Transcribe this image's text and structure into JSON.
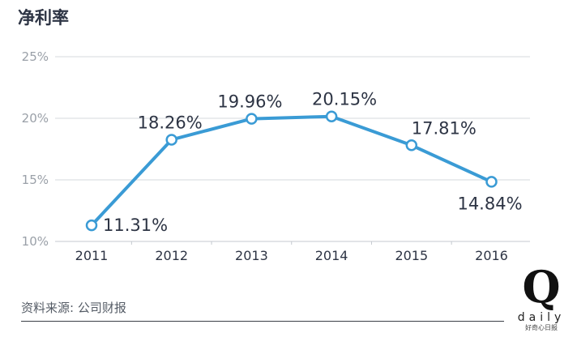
{
  "title": "净利率",
  "source": "资料来源: 公司财报",
  "logo": {
    "mark": "Q",
    "word": "daily",
    "sub": "好奇心日报"
  },
  "colors": {
    "line": "#3a9bd5",
    "grid": "#d5d9de",
    "text": "#2d3444"
  },
  "chart_data": {
    "type": "line",
    "categories": [
      "2011",
      "2012",
      "2013",
      "2014",
      "2015",
      "2016"
    ],
    "values": [
      11.31,
      18.26,
      19.96,
      20.15,
      17.81,
      14.84
    ],
    "data_labels": [
      "11.31%",
      "18.26%",
      "19.96%",
      "20.15%",
      "17.81%",
      "14.84%"
    ],
    "ylim": [
      10,
      25
    ],
    "yticks": [
      10,
      15,
      20,
      25
    ],
    "ytick_labels": [
      "10%",
      "15%",
      "20%",
      "25%"
    ],
    "grid": true
  }
}
